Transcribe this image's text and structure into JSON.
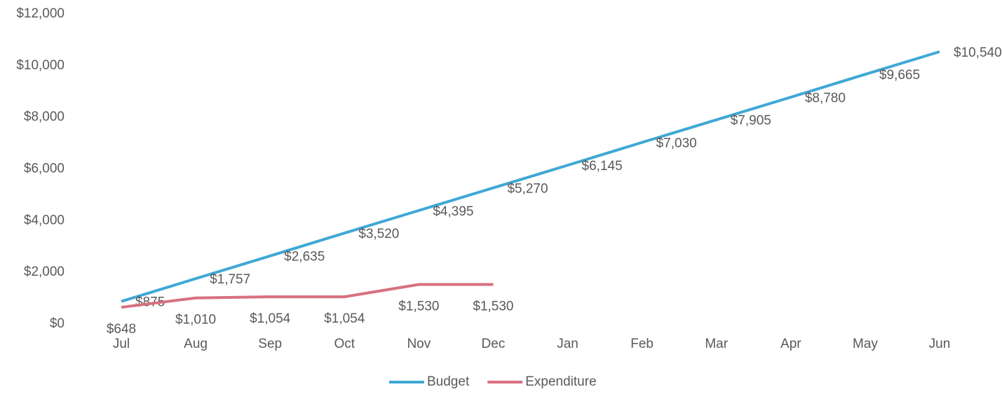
{
  "chart_data": {
    "type": "line",
    "categories": [
      "Jul",
      "Aug",
      "Sep",
      "Oct",
      "Nov",
      "Dec",
      "Jan",
      "Feb",
      "Mar",
      "Apr",
      "May",
      "Jun"
    ],
    "series": [
      {
        "name": "Budget",
        "color": "#3fa8d5",
        "values": [
          875,
          1757,
          2635,
          3520,
          4395,
          5270,
          6145,
          7030,
          7905,
          8780,
          9665,
          10540
        ],
        "value_labels": [
          "$875",
          "$1,757",
          "$2,635",
          "$3,520",
          "$4,395",
          "$5,270",
          "$6,145",
          "$7,030",
          "$7,905",
          "$8,780",
          "$9,665",
          "$10,540"
        ]
      },
      {
        "name": "Expenditure",
        "color": "#d9707f",
        "values": [
          648,
          1010,
          1054,
          1054,
          1530,
          1530,
          null,
          null,
          null,
          null,
          null,
          null
        ],
        "value_labels": [
          "$648",
          "$1,010",
          "$1,054",
          "$1,054",
          "$1,530",
          "$1,530",
          null,
          null,
          null,
          null,
          null,
          null
        ]
      }
    ],
    "ylim": [
      0,
      12000
    ],
    "yticks": [
      {
        "value": 0,
        "label": "$0"
      },
      {
        "value": 2000,
        "label": "$2,000"
      },
      {
        "value": 4000,
        "label": "$4,000"
      },
      {
        "value": 6000,
        "label": "$6,000"
      },
      {
        "value": 8000,
        "label": "$8,000"
      },
      {
        "value": 10000,
        "label": "$10,000"
      },
      {
        "value": 12000,
        "label": "$12,000"
      }
    ],
    "grid": false,
    "legend": "bottom"
  }
}
